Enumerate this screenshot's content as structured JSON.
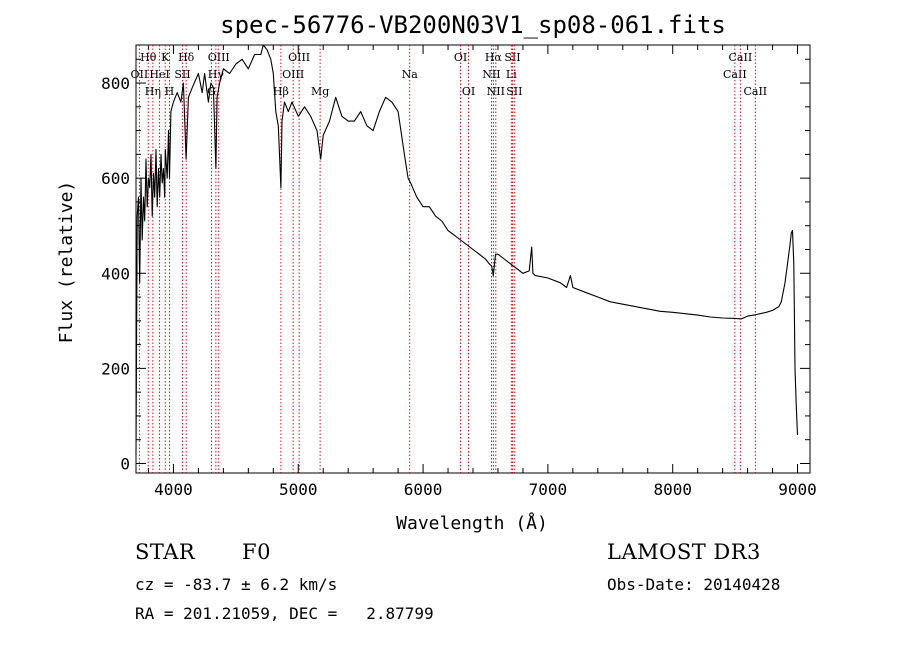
{
  "chart_data": {
    "type": "line",
    "title": "spec-56776-VB200N03V1_sp08-061.fits",
    "xlabel": "Wavelength (Å)",
    "ylabel": "Flux (relative)",
    "xlim": [
      3700,
      9100
    ],
    "ylim": [
      -20,
      880
    ],
    "xticks": [
      4000,
      5000,
      6000,
      7000,
      8000,
      9000
    ],
    "yticks": [
      0,
      200,
      400,
      600,
      800
    ],
    "series": [
      {
        "name": "flux",
        "x": [
          3700,
          3710,
          3720,
          3730,
          3740,
          3750,
          3760,
          3770,
          3780,
          3790,
          3800,
          3810,
          3820,
          3830,
          3840,
          3850,
          3860,
          3870,
          3880,
          3890,
          3900,
          3910,
          3920,
          3930,
          3935,
          3950,
          3960,
          3968,
          3980,
          4000,
          4030,
          4060,
          4080,
          4101,
          4120,
          4150,
          4200,
          4230,
          4250,
          4280,
          4300,
          4320,
          4340,
          4350,
          4370,
          4400,
          4450,
          4500,
          4550,
          4600,
          4650,
          4700,
          4720,
          4750,
          4780,
          4800,
          4820,
          4840,
          4861,
          4870,
          4890,
          4920,
          4950,
          5000,
          5050,
          5100,
          5150,
          5180,
          5200,
          5250,
          5300,
          5350,
          5400,
          5450,
          5500,
          5550,
          5600,
          5650,
          5700,
          5750,
          5800,
          5850,
          5880,
          5900,
          5950,
          6000,
          6050,
          6100,
          6150,
          6200,
          6250,
          6300,
          6350,
          6400,
          6450,
          6500,
          6530,
          6550,
          6563,
          6580,
          6600,
          6650,
          6700,
          6750,
          6800,
          6850,
          6870,
          6880,
          6900,
          7000,
          7100,
          7150,
          7180,
          7200,
          7300,
          7400,
          7500,
          7600,
          7700,
          7800,
          7900,
          8000,
          8100,
          8200,
          8300,
          8400,
          8500,
          8550,
          8600,
          8650,
          8700,
          8750,
          8800,
          8850,
          8870,
          8900,
          8920,
          8940,
          8950,
          8960,
          8970,
          8980,
          8990,
          9000
        ],
        "values": [
          20,
          520,
          560,
          380,
          600,
          470,
          560,
          510,
          640,
          540,
          600,
          580,
          650,
          520,
          610,
          560,
          660,
          540,
          620,
          560,
          650,
          590,
          620,
          560,
          660,
          600,
          700,
          600,
          740,
          760,
          780,
          760,
          800,
          640,
          770,
          790,
          820,
          780,
          820,
          760,
          800,
          790,
          620,
          770,
          800,
          830,
          820,
          840,
          850,
          830,
          860,
          860,
          880,
          870,
          850,
          820,
          740,
          710,
          580,
          720,
          760,
          740,
          760,
          730,
          750,
          730,
          700,
          640,
          690,
          720,
          770,
          730,
          720,
          720,
          740,
          710,
          700,
          740,
          770,
          760,
          740,
          650,
          600,
          590,
          560,
          540,
          540,
          520,
          510,
          490,
          480,
          470,
          460,
          450,
          440,
          430,
          420,
          415,
          395,
          440,
          440,
          430,
          420,
          410,
          400,
          405,
          455,
          400,
          395,
          390,
          380,
          370,
          395,
          370,
          360,
          350,
          340,
          335,
          330,
          325,
          320,
          318,
          315,
          312,
          308,
          306,
          305,
          304,
          310,
          312,
          315,
          318,
          322,
          330,
          340,
          380,
          420,
          460,
          485,
          490,
          420,
          200,
          120,
          60
        ]
      }
    ],
    "emission_lines": [
      {
        "label": "OII",
        "x": 3727,
        "row": 2
      },
      {
        "label": "Hθ",
        "x": 3798,
        "row": 1
      },
      {
        "label": "Hη",
        "x": 3835,
        "row": 3
      },
      {
        "label": "HeI",
        "x": 3889,
        "row": 2
      },
      {
        "label": "K",
        "x": 3934,
        "row": 1
      },
      {
        "label": "H",
        "x": 3968,
        "row": 3
      },
      {
        "label": "SII",
        "x": 4072,
        "row": 2
      },
      {
        "label": "Hδ",
        "x": 4102,
        "row": 1
      },
      {
        "label": "Hγ",
        "x": 4340,
        "row": 2
      },
      {
        "label": "G",
        "x": 4305,
        "row": 3
      },
      {
        "label": "OIII",
        "x": 4363,
        "row": 1
      },
      {
        "label": "Hβ",
        "x": 4861,
        "row": 4
      },
      {
        "label": "OIII",
        "x": 4959,
        "row": 2
      },
      {
        "label": "OIII",
        "x": 5007,
        "row": 1
      },
      {
        "label": "Mg",
        "x": 5175,
        "row": 4
      },
      {
        "label": "Na",
        "x": 5893,
        "row": 2
      },
      {
        "label": "OI",
        "x": 6300,
        "row": 1
      },
      {
        "label": "OI",
        "x": 6364,
        "row": 3
      },
      {
        "label": "NII",
        "x": 6548,
        "row": 2
      },
      {
        "label": "Hα",
        "x": 6563,
        "row": 1
      },
      {
        "label": "NII",
        "x": 6583,
        "row": 3
      },
      {
        "label": "Li",
        "x": 6707,
        "row": 2
      },
      {
        "label": "SII",
        "x": 6716,
        "row": 1
      },
      {
        "label": "SII",
        "x": 6731,
        "row": 3
      },
      {
        "label": "CaII",
        "x": 8498,
        "row": 2
      },
      {
        "label": "CaII",
        "x": 8542,
        "row": 1
      },
      {
        "label": "CaII",
        "x": 8662,
        "row": 3
      }
    ]
  },
  "info": {
    "object_class": "STAR",
    "subclass": "F0",
    "survey": "LAMOST DR3",
    "cz": "cz = -83.7 ± 6.2 km/s",
    "obs_date": "Obs-Date: 20140428",
    "coords": "RA = 201.21059, DEC =   2.87799"
  }
}
